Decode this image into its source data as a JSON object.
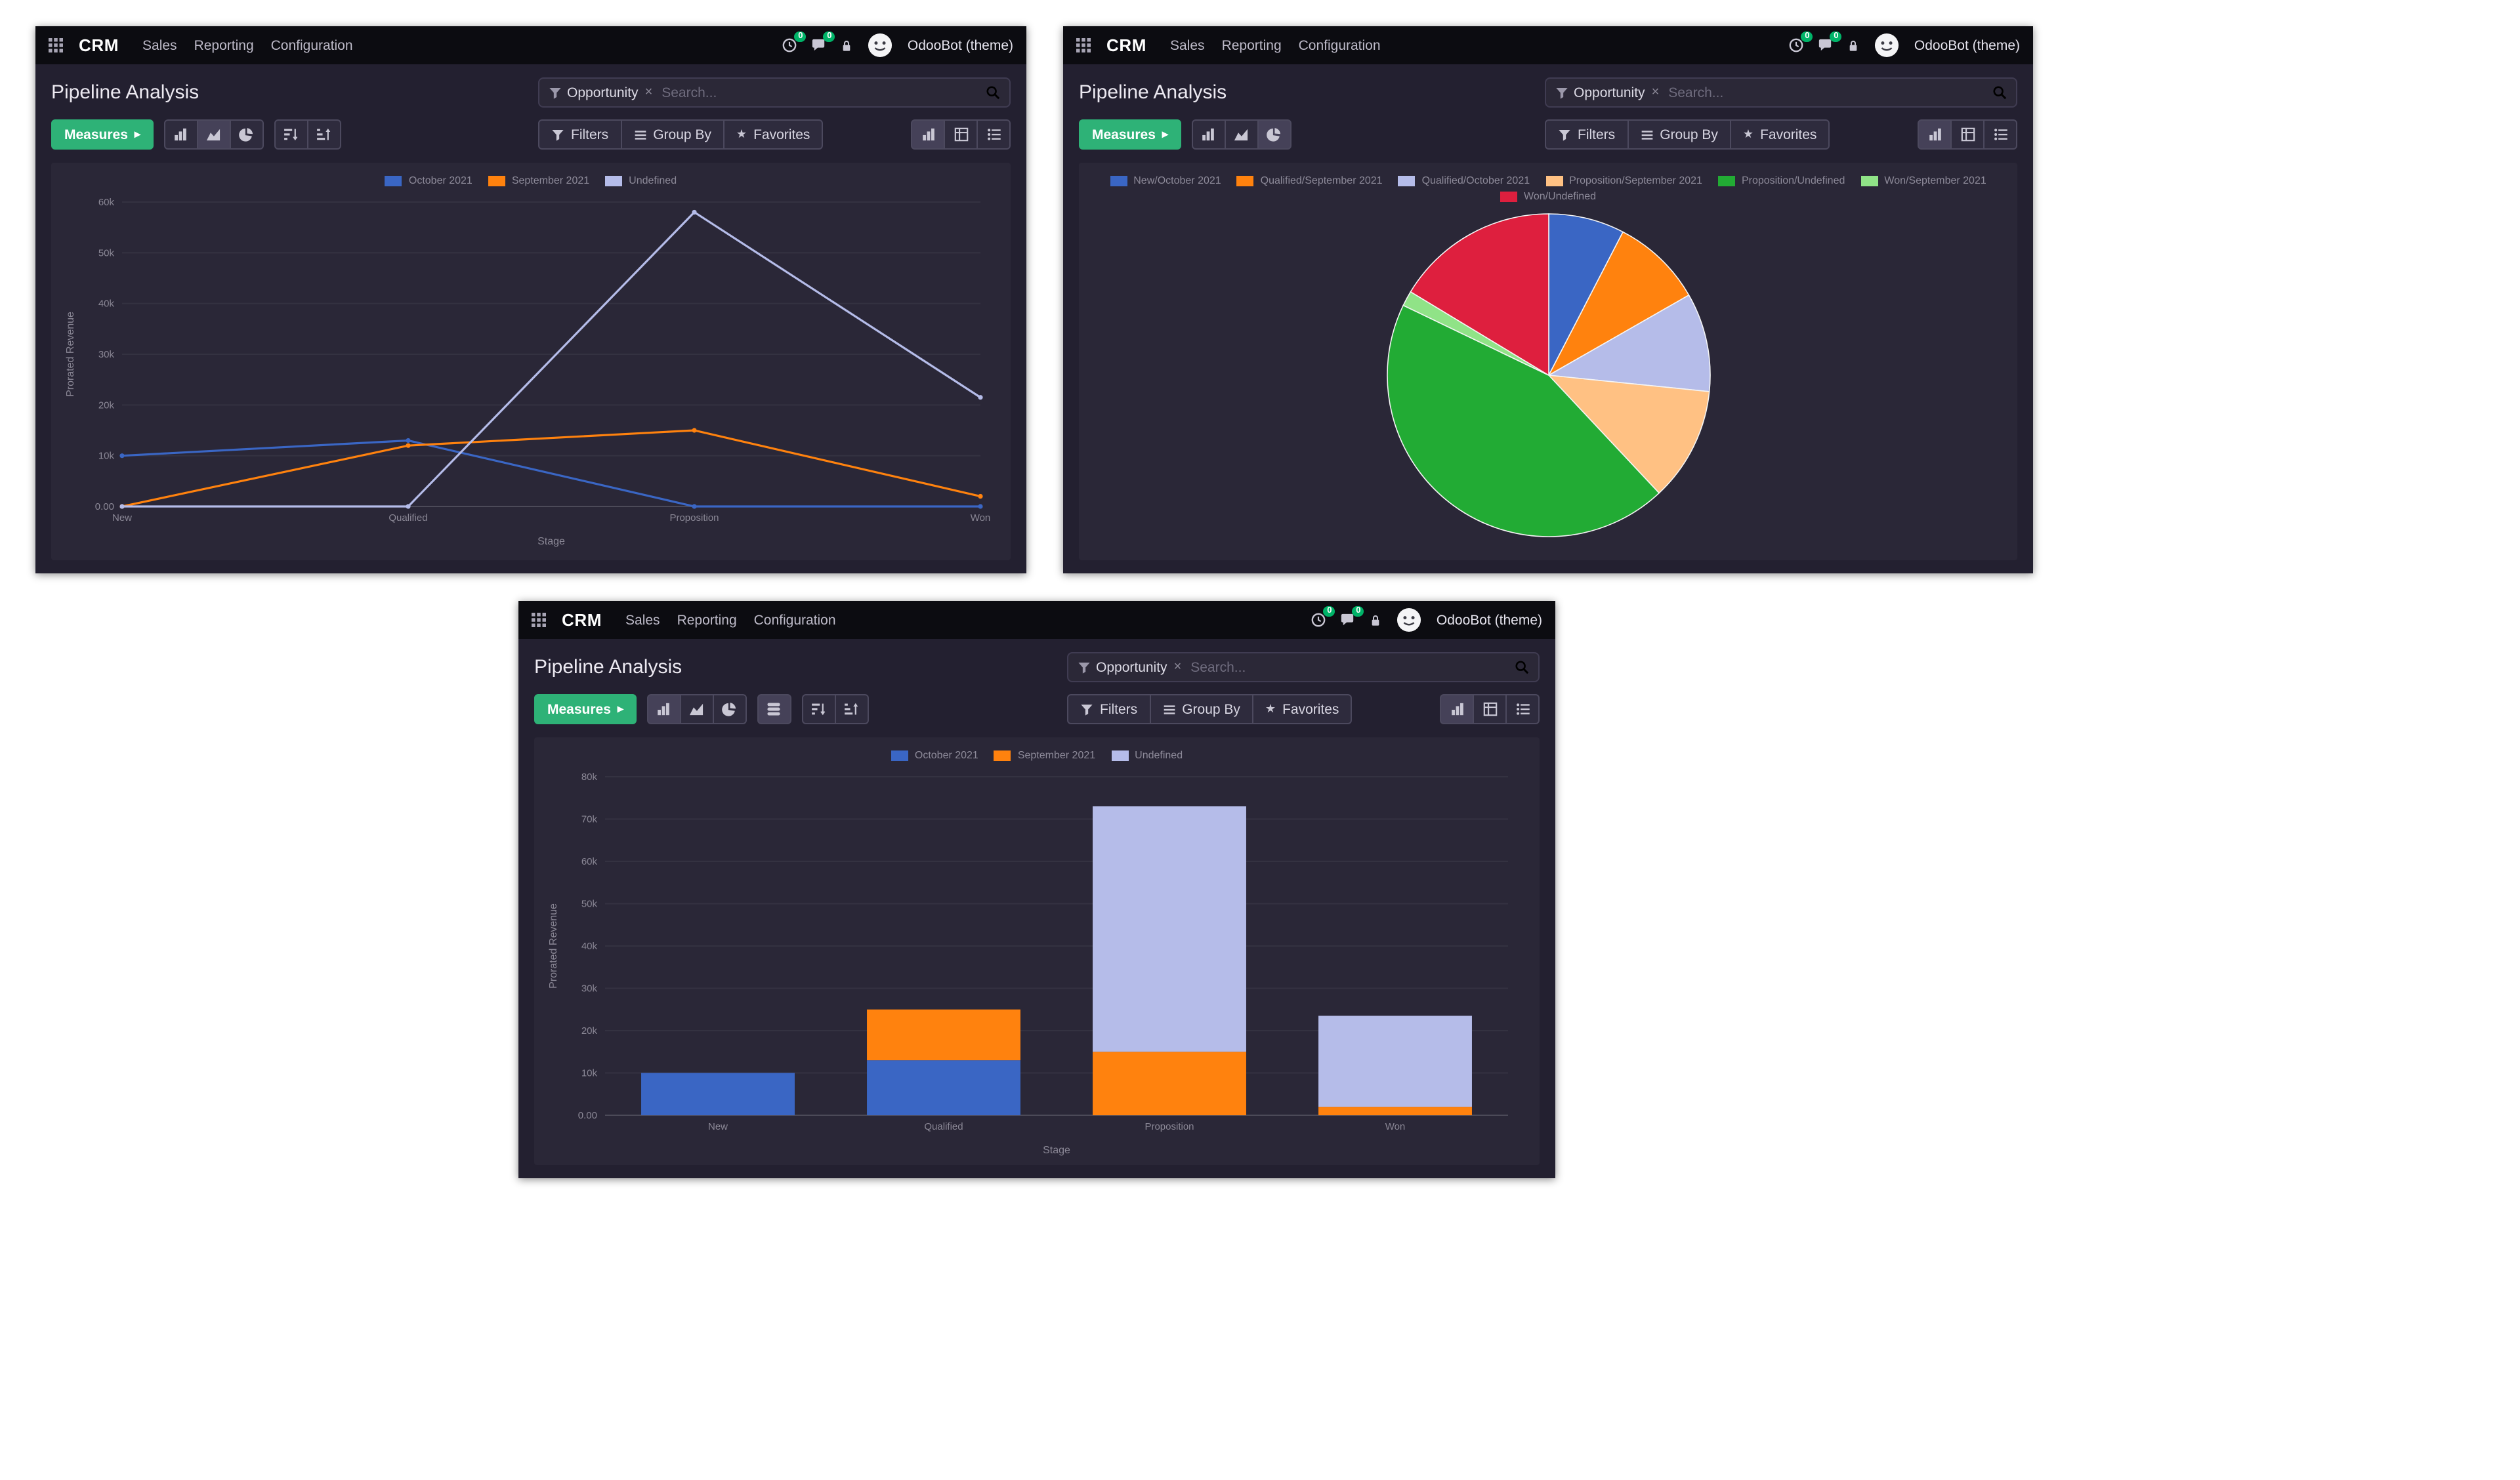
{
  "app": {
    "brand": "CRM",
    "menu": {
      "sales": "Sales",
      "reporting": "Reporting",
      "configuration": "Configuration"
    },
    "user_name": "OdooBot (theme)",
    "systray": {
      "activity_badge": "0",
      "message_badge": "0"
    },
    "page_title": "Pipeline Analysis",
    "search": {
      "facet_label": "Opportunity",
      "placeholder": "Search..."
    },
    "toolbar": {
      "measures_label": "Measures",
      "filters_label": "Filters",
      "group_by_label": "Group By",
      "favorites_label": "Favorites"
    },
    "icons": {
      "caret_right": "▸",
      "star": "★",
      "remove": "×"
    }
  },
  "colors": {
    "navbar_bg": "#0c0c11",
    "panel_bg": "#232030",
    "card_bg": "#2a2737",
    "accent_green": "#2eb277",
    "badge_green": "#00b368",
    "series_blue": "#3a66c4",
    "series_orange": "#ff820e",
    "series_lavender": "#b5bce9",
    "series_peach": "#ffc183",
    "series_green": "#22ab34",
    "series_lightgreen": "#90e387",
    "series_red": "#de1f3e"
  },
  "chart_data": [
    {
      "type": "line",
      "title": "Pipeline Analysis (line)",
      "categories": [
        "New",
        "Qualified",
        "Proposition",
        "Won"
      ],
      "series": [
        {
          "name": "October 2021",
          "color": "#3a66c4",
          "values": [
            10000,
            13000,
            0,
            0
          ]
        },
        {
          "name": "September 2021",
          "color": "#ff820e",
          "values": [
            0,
            12000,
            15000,
            2000
          ]
        },
        {
          "name": "Undefined",
          "color": "#b5bce9",
          "values": [
            0,
            0,
            58000,
            21500
          ]
        }
      ],
      "xlabel": "Stage",
      "ylabel": "Prorated Revenue",
      "ylim": [
        0,
        60000
      ],
      "ytick_labels": [
        "0.00",
        "10k",
        "20k",
        "30k",
        "40k",
        "50k",
        "60k"
      ],
      "grid": false,
      "legend_position": "top"
    },
    {
      "type": "pie",
      "title": "Pipeline Analysis (pie)",
      "slices": [
        {
          "label": "New/October 2021",
          "value": 10000,
          "color": "#3a66c4"
        },
        {
          "label": "Qualified/September 2021",
          "value": 12000,
          "color": "#ff820e"
        },
        {
          "label": "Qualified/October 2021",
          "value": 13000,
          "color": "#b5bce9"
        },
        {
          "label": "Proposition/September 2021",
          "value": 15000,
          "color": "#ffc183"
        },
        {
          "label": "Proposition/Undefined",
          "value": 58000,
          "color": "#22ab34"
        },
        {
          "label": "Won/September 2021",
          "value": 2000,
          "color": "#90e387"
        },
        {
          "label": "Won/Undefined",
          "value": 21500,
          "color": "#de1f3e"
        }
      ],
      "legend_position": "top"
    },
    {
      "type": "bar",
      "stacked": true,
      "title": "Pipeline Analysis (stacked bar)",
      "categories": [
        "New",
        "Qualified",
        "Proposition",
        "Won"
      ],
      "series": [
        {
          "name": "October 2021",
          "color": "#3a66c4",
          "values": [
            10000,
            13000,
            0,
            0
          ]
        },
        {
          "name": "September 2021",
          "color": "#ff820e",
          "values": [
            0,
            12000,
            15000,
            2000
          ]
        },
        {
          "name": "Undefined",
          "color": "#b5bce9",
          "values": [
            0,
            0,
            58000,
            21500
          ]
        }
      ],
      "xlabel": "Stage",
      "ylabel": "Prorated Revenue",
      "ylim": [
        0,
        80000
      ],
      "ytick_labels": [
        "0.00",
        "10k",
        "20k",
        "30k",
        "40k",
        "50k",
        "60k",
        "70k",
        "80k"
      ],
      "grid": false,
      "legend_position": "top"
    }
  ]
}
